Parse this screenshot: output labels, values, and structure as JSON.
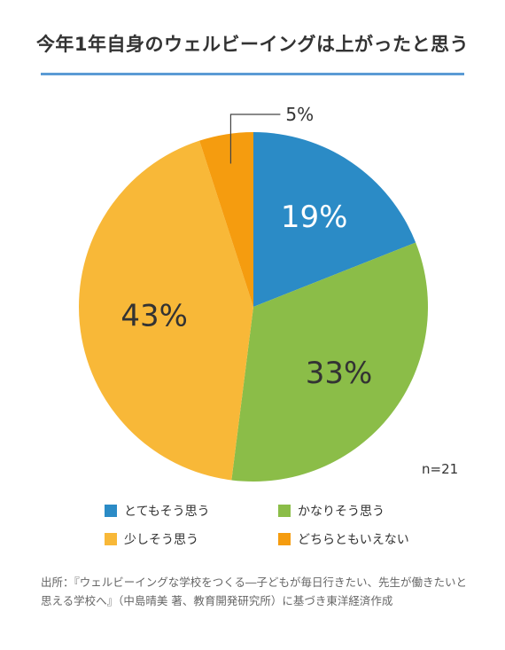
{
  "chart_data": {
    "type": "pie",
    "title": "今年1年自身のウェルビーイングは上がったと思う",
    "categories": [
      "とてもそう思う",
      "かなりそう思う",
      "少しそう思う",
      "どちらともいえない"
    ],
    "values": [
      19,
      33,
      43,
      5
    ],
    "value_labels": [
      "19%",
      "33%",
      "43%",
      "5%"
    ],
    "colors": [
      "#2b8bc6",
      "#8bbd48",
      "#f8b838",
      "#f59c0f"
    ],
    "start_angle_deg": 0,
    "direction": "clockwise",
    "legend_position": "bottom",
    "sample_size": "n=21"
  },
  "source": "出所：『ウェルビーイングな学校をつくる―子どもが毎日行きたい、先生が働きたいと思える学校へ』（中島晴美 著、教育開発研究所）に基づき東洋経済作成"
}
